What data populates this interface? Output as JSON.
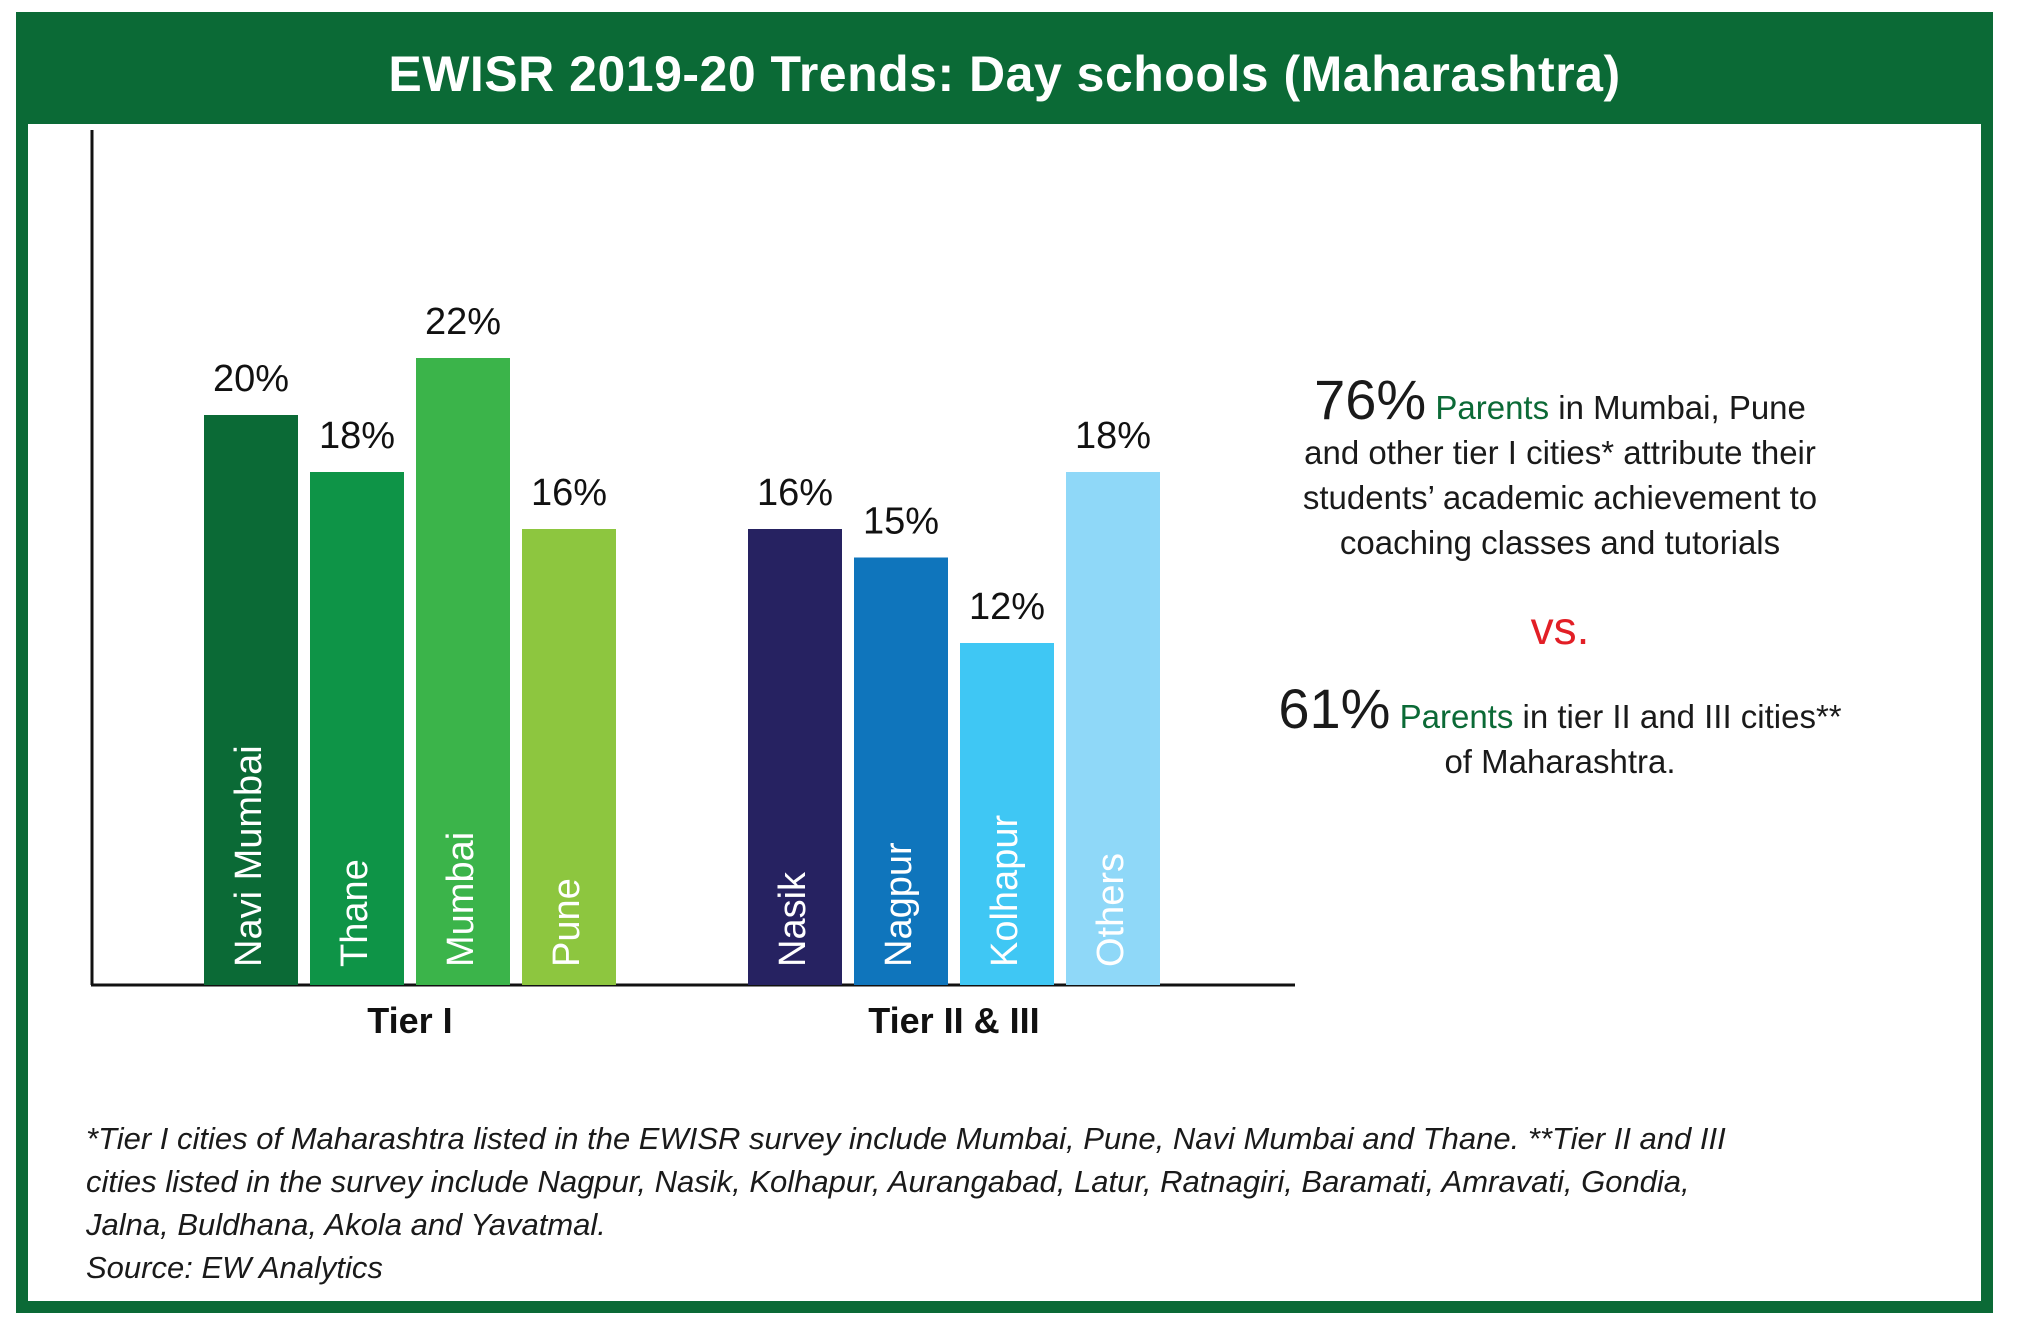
{
  "title": "EWISR 2019-20 Trends: Day schools (Maharashtra)",
  "colors": {
    "frame": "#0b6a36",
    "vs": "#e21f26",
    "parents": "#0b6a36"
  },
  "chart_data": {
    "type": "bar",
    "grid": false,
    "ylim": [
      0,
      30
    ],
    "groups": [
      {
        "name": "Tier I",
        "bars": [
          {
            "label": "Navi Mumbai",
            "value": 20,
            "value_label": "20%",
            "color": "#0b6a36"
          },
          {
            "label": "Thane",
            "value": 18,
            "value_label": "18%",
            "color": "#0e9447"
          },
          {
            "label": "Mumbai",
            "value": 22,
            "value_label": "22%",
            "color": "#3bb44a"
          },
          {
            "label": "Pune",
            "value": 16,
            "value_label": "16%",
            "color": "#8dc63f"
          }
        ]
      },
      {
        "name": "Tier II & III",
        "bars": [
          {
            "label": "Nasik",
            "value": 16,
            "value_label": "16%",
            "color": "#262261"
          },
          {
            "label": "Nagpur",
            "value": 15,
            "value_label": "15%",
            "color": "#0f75bc"
          },
          {
            "label": "Kolhapur",
            "value": 12,
            "value_label": "12%",
            "color": "#3fc7f4"
          },
          {
            "label": "Others",
            "value": 18,
            "value_label": "18%",
            "color": "#8fd8f8"
          }
        ]
      }
    ]
  },
  "comparison": {
    "first_pct": "76%",
    "first_parents": "Parents",
    "first_rest_line1": " in Mumbai, Pune",
    "first_rest_line2": "and other tier I cities* attribute their",
    "first_rest_line3": "students’ academic achievement to",
    "first_rest_line4": "coaching classes and tutorials",
    "vs": "vs.",
    "second_pct": "61%",
    "second_parents": "Parents",
    "second_rest_line1": " in tier II and III cities**",
    "second_rest_line2": "of Maharashtra."
  },
  "footnote": {
    "line1": "*Tier I cities of Maharashtra listed in the EWISR survey include Mumbai, Pune, Navi Mumbai and Thane. **Tier II and III",
    "line2": "cities listed in the survey include Nagpur, Nasik, Kolhapur, Aurangabad, Latur, Ratnagiri, Baramati, Amravati, Gondia,",
    "line3": "Jalna, Buldhana, Akola and Yavatmal.",
    "source": "Source: EW Analytics"
  }
}
